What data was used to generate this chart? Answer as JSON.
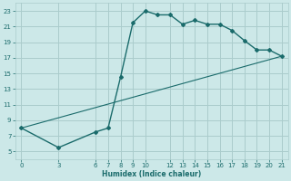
{
  "xlabel": "Humidex (Indice chaleur)",
  "bg_color": "#cce8e8",
  "grid_color": "#aacccc",
  "line_color": "#1a6b6b",
  "xlim": [
    -0.5,
    21.5
  ],
  "ylim": [
    4,
    24
  ],
  "xticks": [
    0,
    3,
    6,
    7,
    8,
    9,
    10,
    12,
    13,
    14,
    15,
    16,
    17,
    18,
    19,
    20,
    21
  ],
  "yticks": [
    5,
    7,
    9,
    11,
    13,
    15,
    17,
    19,
    21,
    23
  ],
  "upper_line_x": [
    0,
    3,
    6,
    7,
    8,
    9,
    10,
    11,
    12,
    13,
    14,
    15,
    16,
    17,
    18,
    19,
    20,
    21
  ],
  "upper_line_y": [
    8.0,
    5.5,
    7.5,
    8.0,
    14.5,
    21.5,
    23.0,
    22.5,
    22.5,
    21.3,
    21.8,
    21.3,
    21.3,
    20.5,
    19.2,
    18.0,
    18.0,
    17.2
  ],
  "lower_line_x": [
    0,
    21
  ],
  "lower_line_y": [
    8.0,
    17.2
  ],
  "marker_x": [
    0,
    3,
    6,
    7,
    8,
    9,
    10,
    11,
    12,
    13,
    14,
    15,
    16,
    17,
    18,
    19,
    20,
    21
  ],
  "marker_y": [
    8.0,
    5.5,
    7.5,
    8.0,
    14.5,
    21.5,
    23.0,
    22.5,
    22.5,
    21.3,
    21.8,
    21.3,
    21.3,
    20.5,
    19.2,
    18.0,
    18.0,
    17.2
  ],
  "xlabel_fontsize": 5.5,
  "tick_fontsize": 5.0
}
